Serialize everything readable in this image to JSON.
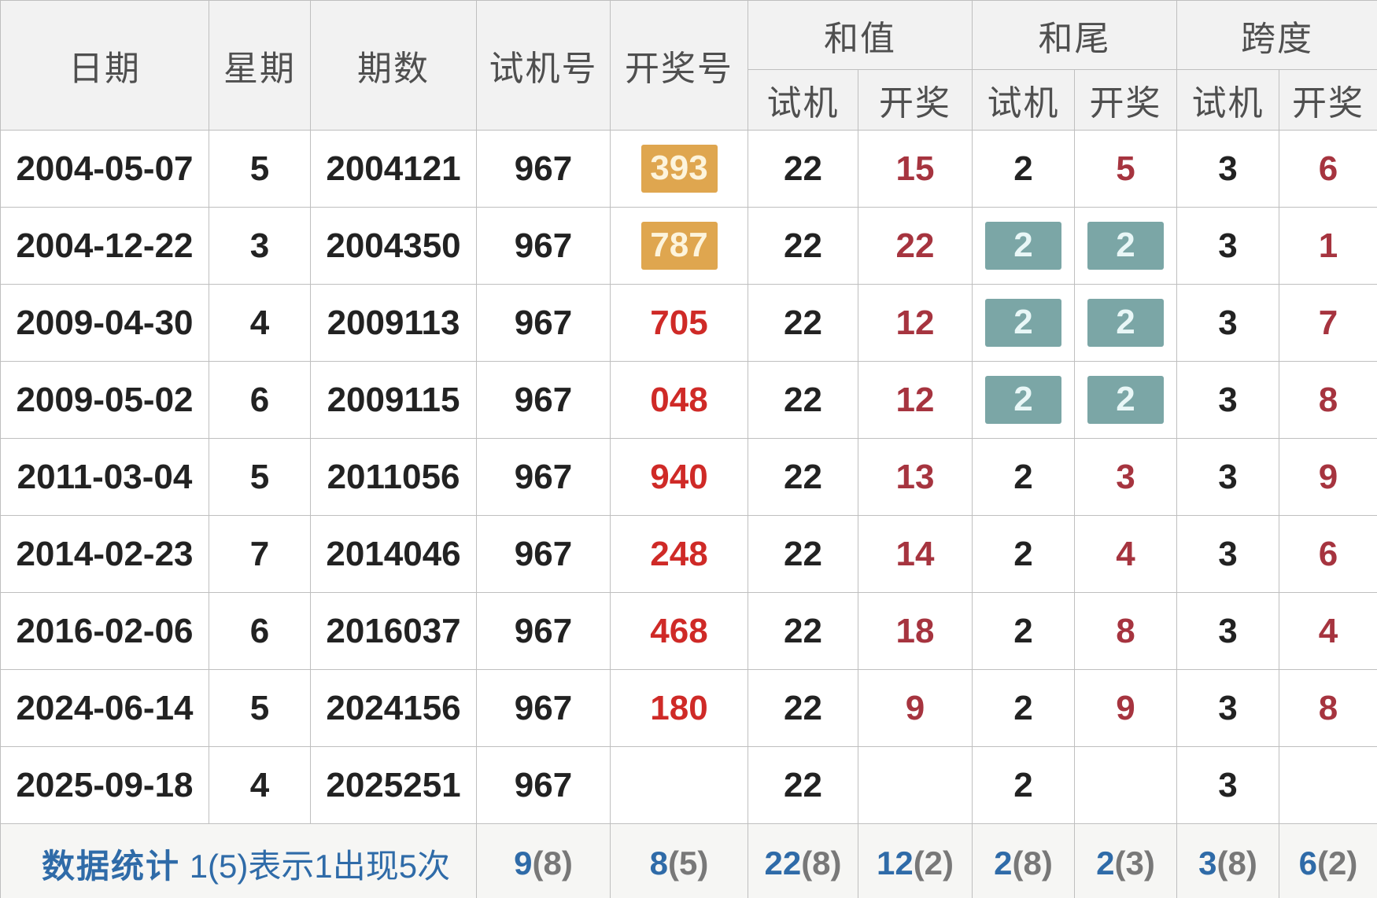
{
  "colors": {
    "header_bg": "#f2f2f2",
    "footer_bg": "#f6f6f4",
    "border": "#bfbfbf",
    "text_black": "#222222",
    "header_text": "#4f4f4f",
    "red_bright": "#cf2a27",
    "red_dark": "#a6343f",
    "orange_box": "#dfa64f",
    "teal_box": "#7ba6a6",
    "blue": "#2f6ba8",
    "paren_gray": "#787878"
  },
  "header": {
    "date": "日期",
    "weekday": "星期",
    "issue": "期数",
    "test_number": "试机号",
    "draw_number": "开奖号",
    "group_sum": "和值",
    "group_sum_tail": "和尾",
    "group_span": "跨度",
    "sub_test": "试机",
    "sub_draw": "开奖"
  },
  "rows": [
    {
      "date": "2004-05-07",
      "weekday": "5",
      "issue": "2004121",
      "test_number": "967",
      "draw_number": "393",
      "draw_highlight": true,
      "sum_test": "22",
      "sum_draw": "15",
      "tail_test": "2",
      "tail_draw": "5",
      "tail_highlight": false,
      "span_test": "3",
      "span_draw": "6"
    },
    {
      "date": "2004-12-22",
      "weekday": "3",
      "issue": "2004350",
      "test_number": "967",
      "draw_number": "787",
      "draw_highlight": true,
      "sum_test": "22",
      "sum_draw": "22",
      "tail_test": "2",
      "tail_draw": "2",
      "tail_highlight": true,
      "span_test": "3",
      "span_draw": "1"
    },
    {
      "date": "2009-04-30",
      "weekday": "4",
      "issue": "2009113",
      "test_number": "967",
      "draw_number": "705",
      "draw_highlight": false,
      "sum_test": "22",
      "sum_draw": "12",
      "tail_test": "2",
      "tail_draw": "2",
      "tail_highlight": true,
      "span_test": "3",
      "span_draw": "7"
    },
    {
      "date": "2009-05-02",
      "weekday": "6",
      "issue": "2009115",
      "test_number": "967",
      "draw_number": "048",
      "draw_highlight": false,
      "sum_test": "22",
      "sum_draw": "12",
      "tail_test": "2",
      "tail_draw": "2",
      "tail_highlight": true,
      "span_test": "3",
      "span_draw": "8"
    },
    {
      "date": "2011-03-04",
      "weekday": "5",
      "issue": "2011056",
      "test_number": "967",
      "draw_number": "940",
      "draw_highlight": false,
      "sum_test": "22",
      "sum_draw": "13",
      "tail_test": "2",
      "tail_draw": "3",
      "tail_highlight": false,
      "span_test": "3",
      "span_draw": "9"
    },
    {
      "date": "2014-02-23",
      "weekday": "7",
      "issue": "2014046",
      "test_number": "967",
      "draw_number": "248",
      "draw_highlight": false,
      "sum_test": "22",
      "sum_draw": "14",
      "tail_test": "2",
      "tail_draw": "4",
      "tail_highlight": false,
      "span_test": "3",
      "span_draw": "6"
    },
    {
      "date": "2016-02-06",
      "weekday": "6",
      "issue": "2016037",
      "test_number": "967",
      "draw_number": "468",
      "draw_highlight": false,
      "sum_test": "22",
      "sum_draw": "18",
      "tail_test": "2",
      "tail_draw": "8",
      "tail_highlight": false,
      "span_test": "3",
      "span_draw": "4"
    },
    {
      "date": "2024-06-14",
      "weekday": "5",
      "issue": "2024156",
      "test_number": "967",
      "draw_number": "180",
      "draw_highlight": false,
      "sum_test": "22",
      "sum_draw": "9",
      "tail_test": "2",
      "tail_draw": "9",
      "tail_highlight": false,
      "span_test": "3",
      "span_draw": "8"
    },
    {
      "date": "2025-09-18",
      "weekday": "4",
      "issue": "2025251",
      "test_number": "967",
      "draw_number": "",
      "draw_highlight": false,
      "sum_test": "22",
      "sum_draw": "",
      "tail_test": "2",
      "tail_draw": "",
      "tail_highlight": false,
      "span_test": "3",
      "span_draw": ""
    }
  ],
  "footer": {
    "stats_label": "数据统计",
    "stats_note": "1(5)表示1出现5次",
    "stats": [
      {
        "value": "9",
        "count": "(8)"
      },
      {
        "value": "8",
        "count": "(5)"
      },
      {
        "value": "22",
        "count": "(8)"
      },
      {
        "value": "12",
        "count": "(2)"
      },
      {
        "value": "2",
        "count": "(8)"
      },
      {
        "value": "2",
        "count": "(3)"
      },
      {
        "value": "3",
        "count": "(8)"
      },
      {
        "value": "6",
        "count": "(2)"
      }
    ]
  }
}
